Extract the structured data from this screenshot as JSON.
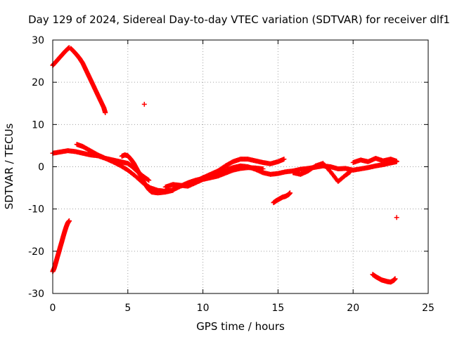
{
  "chart_data": {
    "type": "scatter",
    "title": "Day 129 of 2024, Sidereal Day-to-day VTEC variation (SDTVAR) for receiver dlf1",
    "xlabel": "GPS time / hours",
    "ylabel": "SDTVAR / TECUs",
    "xlim": [
      0,
      25
    ],
    "ylim": [
      -30,
      30
    ],
    "xticks": [
      0,
      5,
      10,
      15,
      20,
      25
    ],
    "yticks": [
      -30,
      -20,
      -10,
      0,
      10,
      20,
      30
    ],
    "grid": true,
    "marker": "+",
    "color": "#ff0000",
    "series": [
      {
        "name": "segment-rising-high",
        "x": [
          0.0,
          0.2,
          0.4,
          0.6,
          0.8,
          1.0,
          1.1
        ],
        "y": [
          24.0,
          24.8,
          25.6,
          26.4,
          27.2,
          27.9,
          28.2
        ]
      },
      {
        "name": "segment-falling-high",
        "x": [
          1.2,
          1.4,
          1.6,
          1.8,
          2.0,
          2.2,
          2.4,
          2.6,
          2.8,
          3.0,
          3.2,
          3.4,
          3.5
        ],
        "y": [
          28.0,
          27.3,
          26.5,
          25.6,
          24.5,
          23.0,
          21.5,
          20.0,
          18.5,
          17.0,
          15.5,
          14.0,
          12.8
        ]
      },
      {
        "name": "isolated-point-high",
        "x": [
          6.1
        ],
        "y": [
          14.8
        ]
      },
      {
        "name": "segment-rising-low",
        "x": [
          0.0,
          0.1,
          0.2,
          0.3,
          0.4,
          0.5,
          0.6,
          0.7,
          0.8,
          0.9,
          1.0,
          1.1
        ],
        "y": [
          -24.8,
          -24.0,
          -22.8,
          -21.5,
          -20.3,
          -19.0,
          -17.8,
          -16.5,
          -15.3,
          -14.2,
          -13.3,
          -12.8
        ]
      },
      {
        "name": "main-band-a",
        "x": [
          0.0,
          0.5,
          1.0,
          1.5,
          2.0,
          2.5,
          3.0,
          3.5,
          4.0,
          4.5,
          5.0,
          5.5,
          6.0,
          6.5,
          7.0,
          7.5,
          8.0,
          8.5,
          9.0,
          9.5,
          10.0,
          10.5,
          11.0,
          11.5,
          12.0,
          12.5,
          13.0,
          13.5,
          14.0,
          14.5,
          15.0,
          15.5,
          16.0,
          16.5,
          17.0,
          17.5,
          18.0,
          18.5,
          19.0,
          19.5,
          20.0,
          20.5,
          21.0,
          21.5,
          22.0,
          22.5,
          22.9
        ],
        "y": [
          3.2,
          3.5,
          3.8,
          3.6,
          3.2,
          2.8,
          2.6,
          2.0,
          1.2,
          0.3,
          -0.8,
          -2.2,
          -3.8,
          -5.0,
          -5.6,
          -5.8,
          -5.5,
          -4.6,
          -3.8,
          -3.2,
          -2.8,
          -2.2,
          -1.5,
          -0.8,
          -0.2,
          0.2,
          0.0,
          -0.6,
          -1.4,
          -1.8,
          -1.6,
          -1.2,
          -1.0,
          -0.6,
          -0.4,
          -0.1,
          0.2,
          0.0,
          -0.5,
          -0.4,
          -0.8,
          -0.5,
          -0.2,
          0.2,
          0.5,
          0.9,
          1.2
        ]
      },
      {
        "name": "main-band-b",
        "x": [
          1.6,
          2.0,
          2.5,
          3.0,
          3.5,
          4.0,
          4.5,
          5.0,
          5.3,
          5.6,
          6.0,
          6.4
        ],
        "y": [
          5.3,
          4.8,
          3.8,
          2.8,
          2.0,
          1.6,
          1.2,
          0.8,
          0.0,
          -1.0,
          -2.2,
          -3.2
        ]
      },
      {
        "name": "main-band-c",
        "x": [
          4.6,
          4.8,
          5.0,
          5.2,
          5.4,
          5.6,
          5.8,
          6.0,
          6.2,
          6.4,
          6.6,
          7.0,
          7.5,
          8.0
        ],
        "y": [
          2.5,
          2.8,
          2.6,
          1.8,
          0.8,
          -0.5,
          -1.8,
          -3.2,
          -4.4,
          -5.4,
          -6.0,
          -6.2,
          -6.0,
          -5.6
        ]
      },
      {
        "name": "main-band-d",
        "x": [
          8.0,
          8.5,
          9.0,
          9.5,
          10.0,
          10.5,
          11.0,
          11.5,
          12.0,
          12.5,
          13.0,
          13.5,
          14.0,
          14.5,
          15.0,
          15.4
        ],
        "y": [
          -5.2,
          -4.6,
          -4.0,
          -3.4,
          -2.6,
          -1.8,
          -1.0,
          0.2,
          1.2,
          1.8,
          1.8,
          1.4,
          1.0,
          0.7,
          1.2,
          1.8
        ]
      },
      {
        "name": "main-band-e",
        "x": [
          7.5,
          8.0,
          8.5,
          9.0,
          9.5,
          10.0,
          10.5,
          11.0,
          11.5,
          12.0,
          12.5,
          13.0,
          13.5,
          14.0
        ],
        "y": [
          -4.8,
          -4.2,
          -4.4,
          -4.6,
          -3.8,
          -3.0,
          -2.6,
          -2.2,
          -1.5,
          -0.8,
          -0.4,
          -0.2,
          -0.3,
          -0.5
        ]
      },
      {
        "name": "main-band-f",
        "x": [
          16.0,
          16.5,
          17.0,
          17.5,
          18.0,
          18.5,
          19.0,
          19.5,
          19.8
        ],
        "y": [
          -1.4,
          -1.8,
          -1.0,
          0.2,
          0.8,
          -1.2,
          -3.5,
          -2.0,
          -1.2
        ]
      },
      {
        "name": "main-band-g",
        "x": [
          20.0,
          20.5,
          21.0,
          21.5,
          22.0,
          22.5,
          22.9
        ],
        "y": [
          1.0,
          1.6,
          1.2,
          2.0,
          1.4,
          1.8,
          1.3
        ]
      },
      {
        "name": "segment-mid-low",
        "x": [
          14.7,
          14.9,
          15.1,
          15.3,
          15.5,
          15.7,
          15.8
        ],
        "y": [
          -8.5,
          -8.0,
          -7.6,
          -7.2,
          -7.0,
          -6.6,
          -6.2
        ]
      },
      {
        "name": "segment-late-low",
        "x": [
          21.3,
          21.5,
          21.7,
          21.9,
          22.1,
          22.3,
          22.5,
          22.7,
          22.8
        ],
        "y": [
          -25.5,
          -26.0,
          -26.4,
          -26.8,
          -27.0,
          -27.2,
          -27.3,
          -26.9,
          -26.5
        ]
      },
      {
        "name": "isolated-point-late",
        "x": [
          22.9
        ],
        "y": [
          -12.0
        ]
      }
    ]
  }
}
